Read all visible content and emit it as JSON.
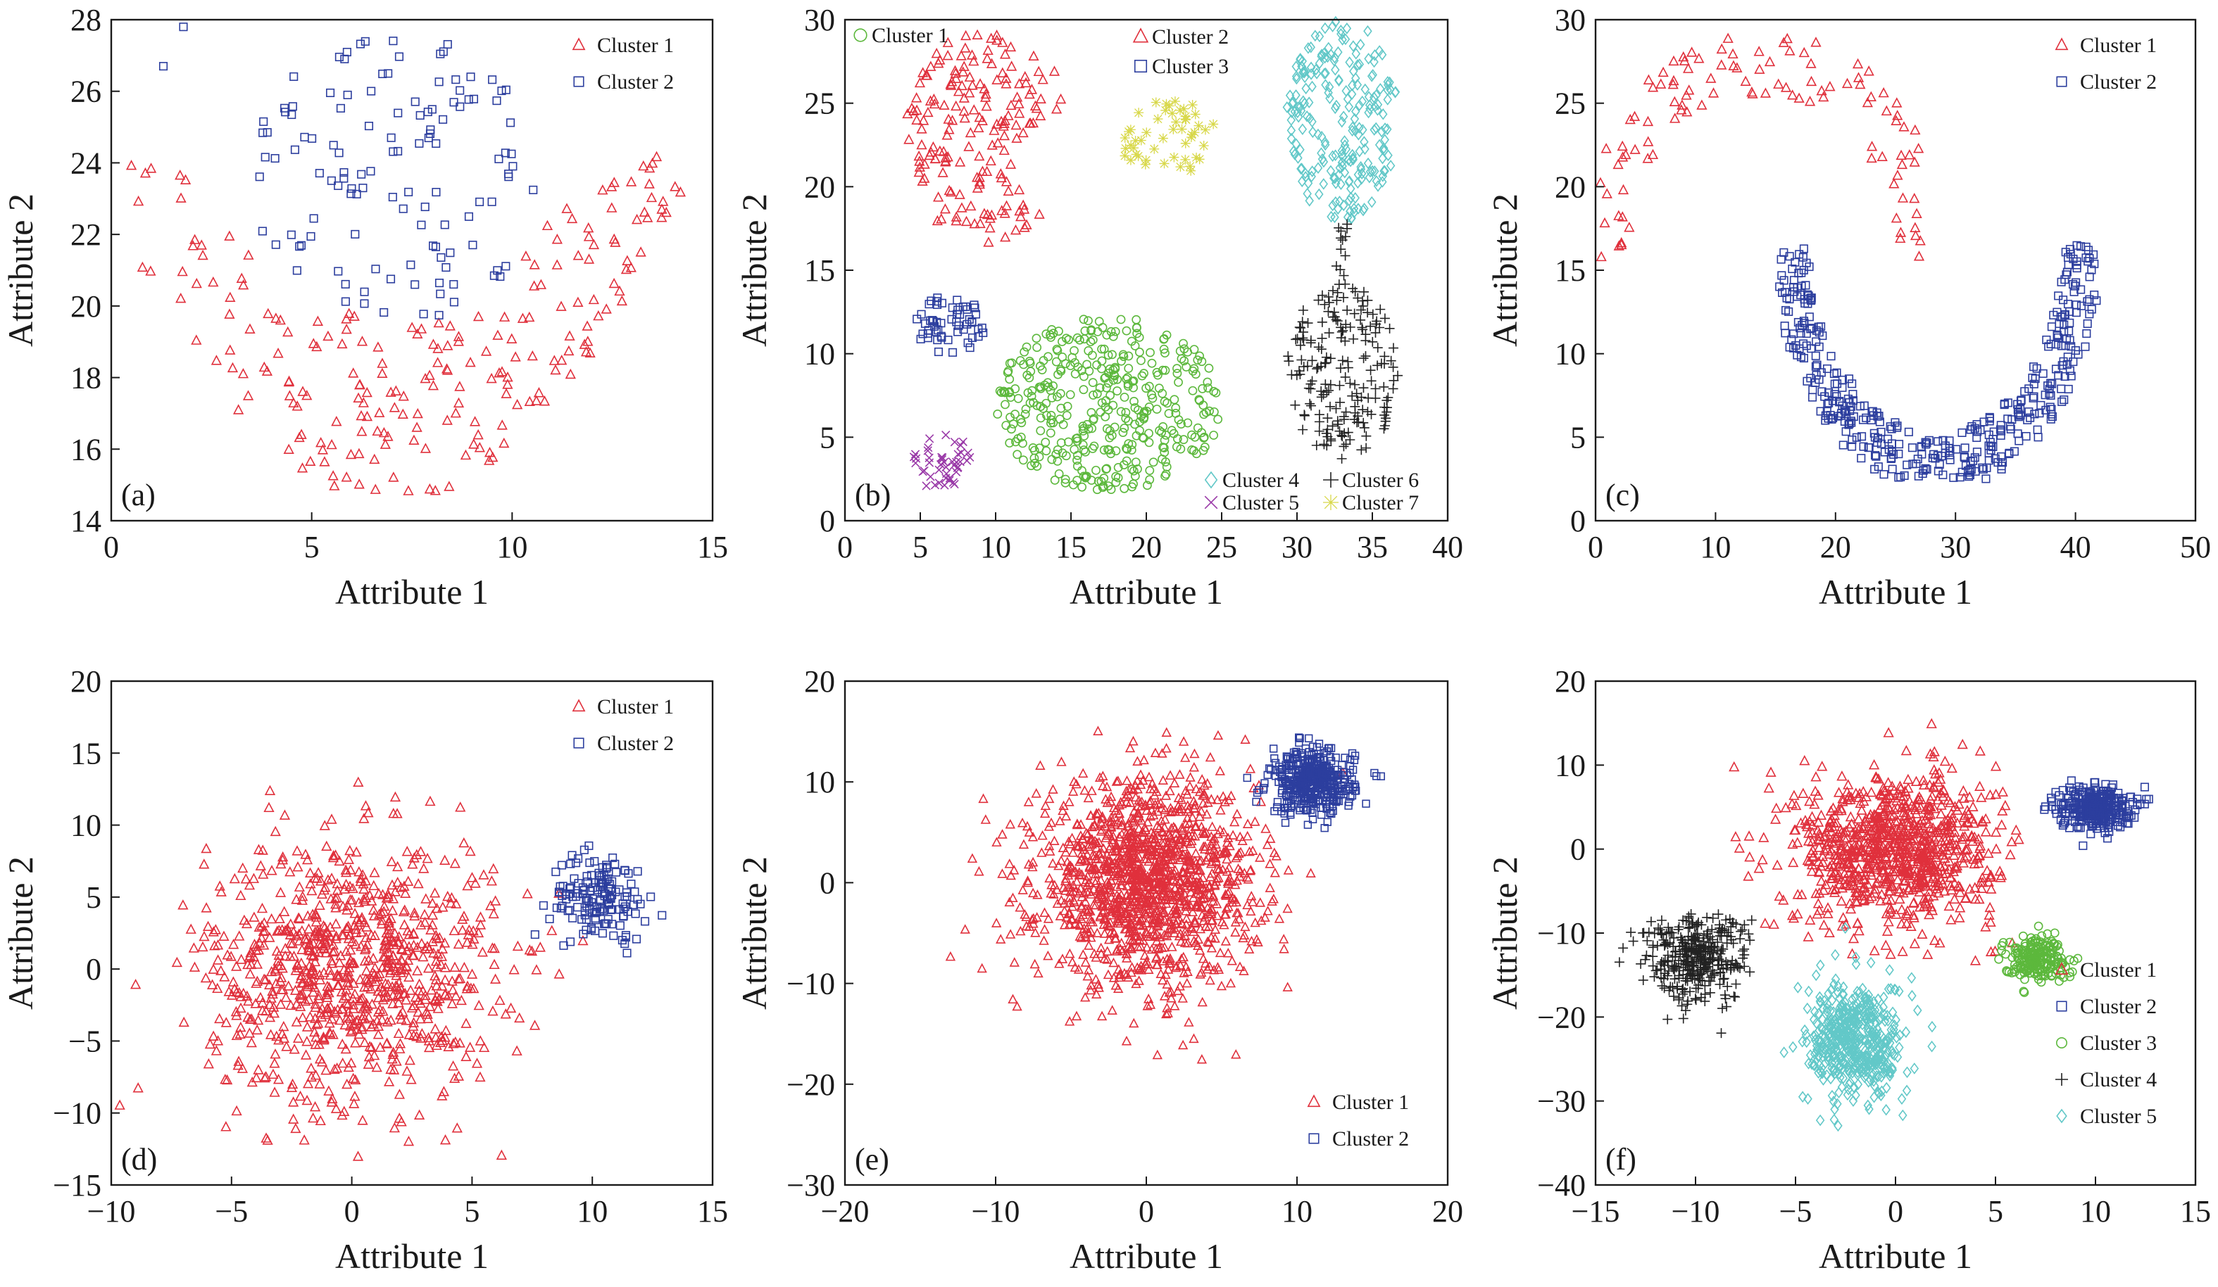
{
  "figure": {
    "panels": [
      {
        "tag": "(a)",
        "xlabel": "Attribute 1",
        "ylabel": "Attribute 2",
        "xlim": [
          0,
          15
        ],
        "ylim": [
          14,
          28
        ],
        "xticks": [
          0,
          5,
          10,
          15
        ],
        "yticks": [
          14,
          16,
          18,
          20,
          22,
          24,
          26,
          28
        ],
        "legend": [
          "Cluster 1",
          "Cluster 2"
        ],
        "legend_position": "top-right"
      },
      {
        "tag": "(b)",
        "xlabel": "Attribute 1",
        "ylabel": "Attribute 2",
        "xlim": [
          0,
          40
        ],
        "ylim": [
          0,
          30
        ],
        "xticks": [
          0,
          5,
          10,
          15,
          20,
          25,
          30,
          35,
          40
        ],
        "yticks": [
          0,
          5,
          10,
          15,
          20,
          25,
          30
        ],
        "legend": [
          "Cluster 1",
          "Cluster 2",
          "Cluster 3",
          "Cluster 4",
          "Cluster 5",
          "Cluster 6",
          "Cluster 7"
        ],
        "legend_position": "scattered inside"
      },
      {
        "tag": "(c)",
        "xlabel": "Attribute 1",
        "ylabel": "Attribute 2",
        "xlim": [
          0,
          50
        ],
        "ylim": [
          0,
          30
        ],
        "xticks": [
          0,
          10,
          20,
          30,
          40,
          50
        ],
        "yticks": [
          0,
          5,
          10,
          15,
          20,
          25,
          30
        ],
        "legend": [
          "Cluster 1",
          "Cluster 2"
        ],
        "legend_position": "top-right"
      },
      {
        "tag": "(d)",
        "xlabel": "Attribute 1",
        "ylabel": "Attribute 2",
        "xlim": [
          -10,
          15
        ],
        "ylim": [
          -15,
          20
        ],
        "xticks": [
          -10,
          -5,
          0,
          5,
          10,
          15
        ],
        "yticks": [
          -15,
          -10,
          -5,
          0,
          5,
          10,
          15,
          20
        ],
        "legend": [
          "Cluster 1",
          "Cluster 2"
        ],
        "legend_position": "top-right"
      },
      {
        "tag": "(e)",
        "xlabel": "Attribute 1",
        "ylabel": "Attribute 2",
        "xlim": [
          -20,
          20
        ],
        "ylim": [
          -30,
          20
        ],
        "xticks": [
          -20,
          -10,
          0,
          10,
          20
        ],
        "yticks": [
          -30,
          -20,
          -10,
          0,
          10,
          20
        ],
        "legend": [
          "Cluster 1",
          "Cluster 2"
        ],
        "legend_position": "bottom-right"
      },
      {
        "tag": "(f)",
        "xlabel": "Attribute 1",
        "ylabel": "Attribute 2",
        "xlim": [
          -15,
          15
        ],
        "ylim": [
          -40,
          20
        ],
        "xticks": [
          -15,
          -10,
          -5,
          0,
          5,
          10,
          15
        ],
        "yticks": [
          -40,
          -30,
          -20,
          -10,
          0,
          10,
          20
        ],
        "legend": [
          "Cluster 1",
          "Cluster 2",
          "Cluster 3",
          "Cluster 4",
          "Cluster 5"
        ],
        "legend_position": "bottom-right"
      }
    ]
  },
  "chart_data": [
    {
      "type": "scatter",
      "panel": "(a)",
      "xlabel": "Attribute 1",
      "ylabel": "Attribute 2",
      "xlim": [
        0,
        15
      ],
      "ylim": [
        14,
        28
      ],
      "legend_position": "top-right",
      "series": [
        {
          "name": "Cluster 1",
          "marker": "triangle",
          "color": "#e0303c",
          "count": 240,
          "shape": "U-shaped band",
          "x": [
            0.5,
            1.0,
            1.5,
            2.0,
            2.5,
            3.5,
            4.5,
            5.5,
            6.5,
            7.5,
            8.5,
            9.5,
            10.5,
            11.5,
            12.5,
            13.0,
            13.5,
            14.0
          ],
          "y": [
            22.4,
            21.4,
            22.8,
            21.2,
            20.0,
            19.0,
            17.8,
            16.2,
            15.0,
            14.8,
            15.4,
            16.6,
            17.8,
            19.2,
            20.8,
            22.4,
            23.2,
            23.4
          ]
        },
        {
          "name": "Cluster 2",
          "marker": "square",
          "color": "#2c3e9e",
          "count": 140,
          "shape": "blob",
          "x": [
            1.3,
            1.8,
            3.8,
            4.5,
            5.5,
            6.5,
            7.5,
            8.5,
            9.5,
            10.5
          ],
          "y": [
            26.7,
            27.8,
            25.2,
            24.0,
            23.0,
            22.5,
            23.5,
            24.0,
            23.0,
            25.6
          ]
        }
      ]
    },
    {
      "type": "scatter",
      "panel": "(b)",
      "xlabel": "Attribute 1",
      "ylabel": "Attribute 2",
      "xlim": [
        0,
        40
      ],
      "ylim": [
        0,
        30
      ],
      "series": [
        {
          "name": "Cluster 1",
          "marker": "circle",
          "color": "#5cb83c",
          "count": 500,
          "center": [
            17.5,
            7.0
          ]
        },
        {
          "name": "Cluster 2",
          "marker": "triangle",
          "color": "#e0303c",
          "count": 270,
          "center": [
            9.5,
            23.0
          ]
        },
        {
          "name": "Cluster 3",
          "marker": "square",
          "color": "#2c3e9e",
          "count": 70,
          "center": [
            7.0,
            11.8
          ]
        },
        {
          "name": "Cluster 4",
          "marker": "diamond",
          "color": "#62c8c8",
          "count": 300,
          "center": [
            33.0,
            24.0
          ]
        },
        {
          "name": "Cluster 5",
          "marker": "x",
          "color": "#9a3aa8",
          "count": 60,
          "center": [
            6.5,
            3.5
          ]
        },
        {
          "name": "Cluster 6",
          "marker": "plus",
          "color": "#222222",
          "count": 230,
          "center": [
            33.0,
            9.0
          ]
        },
        {
          "name": "Cluster 7",
          "marker": "asterisk",
          "color": "#d8d84a",
          "count": 60,
          "center": [
            21.5,
            23.0
          ]
        }
      ]
    },
    {
      "type": "scatter",
      "panel": "(c)",
      "xlabel": "Attribute 1",
      "ylabel": "Attribute 2",
      "xlim": [
        0,
        50
      ],
      "ylim": [
        0,
        30
      ],
      "legend_position": "top-right",
      "series": [
        {
          "name": "Cluster 1",
          "marker": "triangle",
          "color": "#e0303c",
          "count": 120,
          "shape": "upper arc",
          "x": [
            0.5,
            3,
            6,
            9,
            12,
            15,
            18,
            21,
            24,
            27
          ],
          "y": [
            16,
            21,
            23,
            26,
            27,
            26,
            24,
            21,
            18,
            16
          ]
        },
        {
          "name": "Cluster 2",
          "marker": "square",
          "color": "#2c3e9e",
          "count": 420,
          "shape": "lower arc",
          "x": [
            16,
            17,
            19,
            21,
            24,
            27,
            30,
            33,
            36,
            38,
            40
          ],
          "y": [
            16,
            12,
            8,
            6,
            4.5,
            4,
            4.5,
            6,
            9,
            12,
            16
          ]
        }
      ]
    },
    {
      "type": "scatter",
      "panel": "(d)",
      "xlabel": "Attribute 1",
      "ylabel": "Attribute 2",
      "xlim": [
        -10,
        15
      ],
      "ylim": [
        -15,
        20
      ],
      "legend_position": "top-right",
      "series": [
        {
          "name": "Cluster 1",
          "marker": "triangle",
          "color": "#e0303c",
          "count": 900,
          "center": [
            0,
            0
          ]
        },
        {
          "name": "Cluster 2",
          "marker": "square",
          "color": "#2c3e9e",
          "count": 150,
          "center": [
            10.3,
            5.0
          ]
        }
      ]
    },
    {
      "type": "scatter",
      "panel": "(e)",
      "xlabel": "Attribute 1",
      "ylabel": "Attribute 2",
      "xlim": [
        -20,
        20
      ],
      "ylim": [
        -30,
        20
      ],
      "legend_position": "bottom-right",
      "series": [
        {
          "name": "Cluster 1",
          "marker": "triangle",
          "color": "#e0303c",
          "count": 3000,
          "center": [
            0,
            0
          ]
        },
        {
          "name": "Cluster 2",
          "marker": "square",
          "color": "#2c3e9e",
          "count": 400,
          "center": [
            11,
            10
          ]
        }
      ]
    },
    {
      "type": "scatter",
      "panel": "(f)",
      "xlabel": "Attribute 1",
      "ylabel": "Attribute 2",
      "xlim": [
        -15,
        15
      ],
      "ylim": [
        -40,
        20
      ],
      "legend_position": "bottom-right",
      "series": [
        {
          "name": "Cluster 1",
          "marker": "triangle",
          "color": "#e0303c",
          "count": 1500,
          "center": [
            0,
            0
          ]
        },
        {
          "name": "Cluster 2",
          "marker": "square",
          "color": "#2c3e9e",
          "count": 300,
          "center": [
            10,
            5
          ]
        },
        {
          "name": "Cluster 3",
          "marker": "circle",
          "color": "#5cb83c",
          "count": 200,
          "center": [
            7,
            -13
          ]
        },
        {
          "name": "Cluster 4",
          "marker": "plus",
          "color": "#222222",
          "count": 350,
          "center": [
            -10,
            -13
          ]
        },
        {
          "name": "Cluster 5",
          "marker": "diamond",
          "color": "#62c8c8",
          "count": 500,
          "center": [
            -2,
            -23
          ]
        }
      ]
    }
  ]
}
